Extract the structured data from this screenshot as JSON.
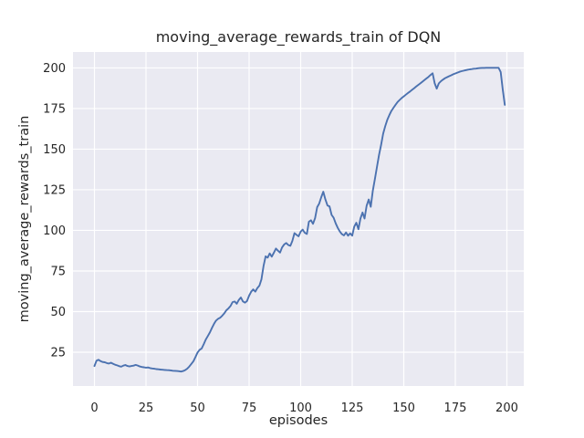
{
  "chart_data": {
    "type": "line",
    "title": "moving_average_rewards_train of DQN",
    "xlabel": "episodes",
    "ylabel": "moving_average_rewards_train",
    "x_ticks": [
      0,
      25,
      50,
      75,
      100,
      125,
      150,
      175,
      200
    ],
    "y_ticks": [
      25,
      50,
      75,
      100,
      125,
      150,
      175,
      200
    ],
    "xlim": [
      -10.4,
      208.2
    ],
    "ylim": [
      4.2,
      209.8
    ],
    "grid": true,
    "legend": "none",
    "style": "seaborn-darkgrid",
    "colors": {
      "line": "#4C72B0",
      "plot_background": "#EAEAF2",
      "grid": "#FFFFFF",
      "text": "#262626",
      "figure_background": "#FFFFFF"
    },
    "series": [
      {
        "name": "moving_average_rewards_train",
        "points": [
          [
            0,
            16.5
          ],
          [
            1,
            19.8
          ],
          [
            2,
            20.3
          ],
          [
            3,
            19.5
          ],
          [
            4,
            19.0
          ],
          [
            5,
            18.8
          ],
          [
            6,
            18.3
          ],
          [
            7,
            18.0
          ],
          [
            8,
            18.5
          ],
          [
            9,
            17.9
          ],
          [
            10,
            17.3
          ],
          [
            11,
            16.9
          ],
          [
            12,
            16.4
          ],
          [
            13,
            16.1
          ],
          [
            14,
            16.7
          ],
          [
            15,
            17.1
          ],
          [
            16,
            16.5
          ],
          [
            17,
            16.2
          ],
          [
            18,
            16.5
          ],
          [
            19,
            16.7
          ],
          [
            20,
            17.2
          ],
          [
            21,
            16.8
          ],
          [
            22,
            16.2
          ],
          [
            23,
            15.9
          ],
          [
            24,
            15.7
          ],
          [
            25,
            15.5
          ],
          [
            26,
            15.6
          ],
          [
            27,
            15.2
          ],
          [
            28,
            15.0
          ],
          [
            29,
            14.8
          ],
          [
            30,
            14.6
          ],
          [
            31,
            14.5
          ],
          [
            32,
            14.3
          ],
          [
            33,
            14.2
          ],
          [
            34,
            14.1
          ],
          [
            35,
            14.0
          ],
          [
            36,
            13.9
          ],
          [
            37,
            13.8
          ],
          [
            38,
            13.6
          ],
          [
            39,
            13.5
          ],
          [
            40,
            13.4
          ],
          [
            41,
            13.3
          ],
          [
            42,
            13.1
          ],
          [
            43,
            13.4
          ],
          [
            44,
            14.0
          ],
          [
            45,
            14.9
          ],
          [
            46,
            16.2
          ],
          [
            47,
            17.8
          ],
          [
            48,
            19.5
          ],
          [
            49,
            22.0
          ],
          [
            50,
            24.8
          ],
          [
            51,
            26.5
          ],
          [
            52,
            27.3
          ],
          [
            53,
            30.0
          ],
          [
            54,
            32.8
          ],
          [
            55,
            35.0
          ],
          [
            56,
            37.3
          ],
          [
            57,
            40.0
          ],
          [
            58,
            42.5
          ],
          [
            59,
            44.5
          ],
          [
            60,
            45.6
          ],
          [
            61,
            46.3
          ],
          [
            62,
            47.5
          ],
          [
            63,
            49.0
          ],
          [
            64,
            50.8
          ],
          [
            65,
            52.0
          ],
          [
            66,
            53.5
          ],
          [
            67,
            55.8
          ],
          [
            68,
            56.2
          ],
          [
            69,
            54.8
          ],
          [
            70,
            57.2
          ],
          [
            71,
            58.7
          ],
          [
            72,
            56.3
          ],
          [
            73,
            55.5
          ],
          [
            74,
            56.5
          ],
          [
            75,
            59.8
          ],
          [
            76,
            62.2
          ],
          [
            77,
            63.7
          ],
          [
            78,
            62.3
          ],
          [
            79,
            64.5
          ],
          [
            80,
            66.0
          ],
          [
            81,
            69.8
          ],
          [
            82,
            78.0
          ],
          [
            83,
            84.0
          ],
          [
            84,
            83.2
          ],
          [
            85,
            85.8
          ],
          [
            86,
            83.8
          ],
          [
            87,
            86.2
          ],
          [
            88,
            88.8
          ],
          [
            89,
            87.5
          ],
          [
            90,
            86.3
          ],
          [
            91,
            89.5
          ],
          [
            92,
            91.3
          ],
          [
            93,
            92.2
          ],
          [
            94,
            91.0
          ],
          [
            95,
            90.5
          ],
          [
            96,
            93.5
          ],
          [
            97,
            98.3
          ],
          [
            98,
            97.2
          ],
          [
            99,
            96.3
          ],
          [
            100,
            99.2
          ],
          [
            101,
            100.5
          ],
          [
            102,
            98.5
          ],
          [
            103,
            97.8
          ],
          [
            104,
            105.3
          ],
          [
            105,
            106.2
          ],
          [
            106,
            104.0
          ],
          [
            107,
            107.5
          ],
          [
            108,
            114.3
          ],
          [
            109,
            116.5
          ],
          [
            110,
            120.5
          ],
          [
            111,
            123.8
          ],
          [
            112,
            119.0
          ],
          [
            113,
            115.3
          ],
          [
            114,
            114.8
          ],
          [
            115,
            109.5
          ],
          [
            116,
            107.8
          ],
          [
            117,
            104.3
          ],
          [
            118,
            101.5
          ],
          [
            119,
            99.3
          ],
          [
            120,
            97.7
          ],
          [
            121,
            96.9
          ],
          [
            122,
            98.7
          ],
          [
            123,
            96.7
          ],
          [
            124,
            98.2
          ],
          [
            125,
            96.7
          ],
          [
            126,
            102.3
          ],
          [
            127,
            104.7
          ],
          [
            128,
            100.7
          ],
          [
            129,
            107.2
          ],
          [
            130,
            111.0
          ],
          [
            131,
            107.3
          ],
          [
            132,
            115.2
          ],
          [
            133,
            119.0
          ],
          [
            134,
            114.5
          ],
          [
            135,
            124.5
          ],
          [
            136,
            131.5
          ],
          [
            137,
            139.0
          ],
          [
            138,
            146.5
          ],
          [
            139,
            152.5
          ],
          [
            140,
            159.5
          ],
          [
            141,
            164.0
          ],
          [
            142,
            168.0
          ],
          [
            143,
            171.0
          ],
          [
            144,
            173.5
          ],
          [
            145,
            175.5
          ],
          [
            146,
            177.3
          ],
          [
            147,
            179.0
          ],
          [
            148,
            180.3
          ],
          [
            149,
            181.5
          ],
          [
            150,
            182.5
          ],
          [
            151,
            183.5
          ],
          [
            152,
            184.5
          ],
          [
            153,
            185.5
          ],
          [
            154,
            186.5
          ],
          [
            155,
            187.5
          ],
          [
            156,
            188.5
          ],
          [
            157,
            189.5
          ],
          [
            158,
            190.5
          ],
          [
            159,
            191.5
          ],
          [
            160,
            192.5
          ],
          [
            161,
            193.5
          ],
          [
            162,
            194.5
          ],
          [
            163,
            195.7
          ],
          [
            164,
            196.7
          ],
          [
            165,
            190.5
          ],
          [
            166,
            187.3
          ],
          [
            167,
            190.5
          ],
          [
            168,
            191.8
          ],
          [
            169,
            192.8
          ],
          [
            170,
            193.7
          ],
          [
            171,
            194.3
          ],
          [
            172,
            194.9
          ],
          [
            173,
            195.5
          ],
          [
            174,
            196.1
          ],
          [
            175,
            196.6
          ],
          [
            176,
            197.1
          ],
          [
            177,
            197.6
          ],
          [
            178,
            198.0
          ],
          [
            179,
            198.3
          ],
          [
            180,
            198.6
          ],
          [
            181,
            198.9
          ],
          [
            182,
            199.1
          ],
          [
            183,
            199.3
          ],
          [
            184,
            199.5
          ],
          [
            185,
            199.6
          ],
          [
            186,
            199.8
          ],
          [
            187,
            199.9
          ],
          [
            188,
            200.0
          ],
          [
            189,
            200.0
          ],
          [
            190,
            200.1
          ],
          [
            191,
            200.1
          ],
          [
            192,
            200.1
          ],
          [
            193,
            200.1
          ],
          [
            194,
            200.1
          ],
          [
            195,
            200.1
          ],
          [
            196,
            200.1
          ],
          [
            197,
            197.5
          ],
          [
            198,
            187.0
          ],
          [
            199,
            177.3
          ]
        ]
      }
    ]
  }
}
